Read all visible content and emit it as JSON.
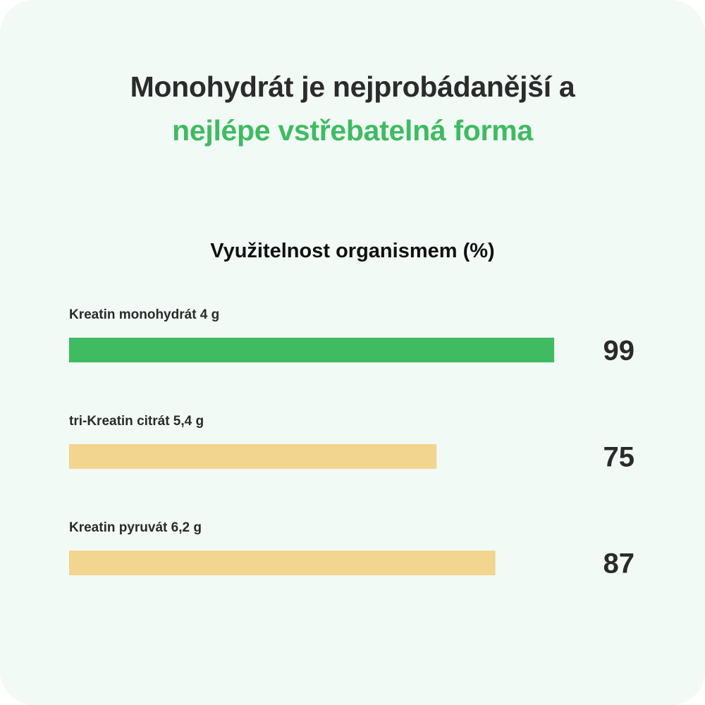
{
  "headline": {
    "line1": "Monohydrát je nejprobádanější a",
    "line2": "nejlépe vstřebatelná forma"
  },
  "colors": {
    "background": "#f2faf5",
    "accent_green": "#3fbb62",
    "bar_other": "#f2d58e",
    "text_dark": "#2a2a2a"
  },
  "chart_data": {
    "type": "bar",
    "orientation": "horizontal",
    "title": "Využitelnost organismem (%)",
    "categories": [
      "Kreatin monohydrát 4 g",
      "tri-Kreatin citrát 5,4 g",
      "Kreatin pyruvát 6,2 g"
    ],
    "values": [
      99,
      75,
      87
    ],
    "bar_colors": [
      "#3fbb62",
      "#f2d58e",
      "#f2d58e"
    ],
    "xlim": [
      0,
      100
    ],
    "grid": false,
    "legend": "none"
  }
}
